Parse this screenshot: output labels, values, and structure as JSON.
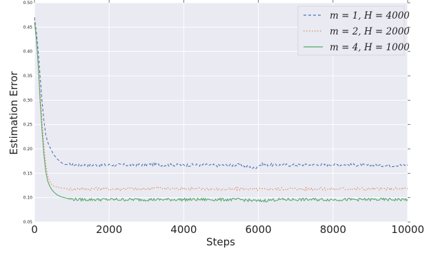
{
  "chart_data": {
    "type": "line",
    "title": "",
    "xlabel": "Steps",
    "ylabel": "Estimation Error",
    "xlim": [
      0,
      10000
    ],
    "ylim": [
      0.05,
      0.5
    ],
    "xticks": [
      "0",
      "2000",
      "4000",
      "6000",
      "8000",
      "10000"
    ],
    "yticks": [
      "0.05",
      "0.10",
      "0.15",
      "0.20",
      "0.25",
      "0.30",
      "0.35",
      "0.40",
      "0.45",
      "0.50"
    ],
    "grid": true,
    "legend_position": "top-right",
    "background": "#eaeaf2",
    "series": [
      {
        "name": "m = 1, H = 4000",
        "color": "#4c72b0",
        "style": "dashed",
        "x": [
          0,
          50,
          100,
          150,
          200,
          250,
          300,
          350,
          400,
          450,
          500,
          600,
          700,
          800,
          900,
          1000,
          1200,
          1500,
          2000,
          2500,
          3000,
          3500,
          4000,
          4500,
          5000,
          5500,
          5900,
          6000,
          6100,
          6500,
          7000,
          7500,
          8000,
          8500,
          9000,
          9500,
          10000
        ],
        "y": [
          0.47,
          0.44,
          0.4,
          0.35,
          0.3,
          0.26,
          0.23,
          0.215,
          0.205,
          0.198,
          0.19,
          0.18,
          0.173,
          0.168,
          0.168,
          0.167,
          0.167,
          0.167,
          0.167,
          0.167,
          0.168,
          0.167,
          0.167,
          0.167,
          0.166,
          0.167,
          0.16,
          0.166,
          0.168,
          0.167,
          0.167,
          0.167,
          0.168,
          0.167,
          0.166,
          0.166,
          0.167
        ]
      },
      {
        "name": "m = 2, H = 2000",
        "color": "#dd8452",
        "style": "dotted",
        "x": [
          0,
          50,
          100,
          150,
          200,
          250,
          300,
          350,
          400,
          450,
          500,
          600,
          700,
          800,
          900,
          1000,
          1200,
          1500,
          2000,
          2500,
          3000,
          3300,
          3500,
          4000,
          4500,
          5000,
          5500,
          6000,
          6500,
          7000,
          7500,
          8000,
          8500,
          9000,
          9500,
          10000
        ],
        "y": [
          0.465,
          0.43,
          0.38,
          0.32,
          0.26,
          0.21,
          0.17,
          0.145,
          0.135,
          0.128,
          0.124,
          0.122,
          0.12,
          0.119,
          0.118,
          0.118,
          0.118,
          0.118,
          0.118,
          0.118,
          0.118,
          0.121,
          0.118,
          0.119,
          0.118,
          0.117,
          0.118,
          0.117,
          0.118,
          0.118,
          0.118,
          0.118,
          0.118,
          0.118,
          0.118,
          0.118
        ]
      },
      {
        "name": "m = 4, H = 1000",
        "color": "#55a868",
        "style": "solid",
        "x": [
          0,
          50,
          100,
          150,
          200,
          250,
          300,
          350,
          400,
          450,
          500,
          600,
          700,
          800,
          900,
          1000,
          1200,
          1500,
          2000,
          2500,
          3000,
          3500,
          4000,
          4500,
          5000,
          5500,
          6000,
          6500,
          7000,
          7500,
          8000,
          8500,
          9000,
          9500,
          10000
        ],
        "y": [
          0.46,
          0.425,
          0.37,
          0.3,
          0.24,
          0.19,
          0.155,
          0.135,
          0.125,
          0.118,
          0.113,
          0.106,
          0.102,
          0.1,
          0.098,
          0.097,
          0.096,
          0.096,
          0.096,
          0.096,
          0.096,
          0.096,
          0.096,
          0.096,
          0.096,
          0.096,
          0.093,
          0.096,
          0.096,
          0.096,
          0.096,
          0.096,
          0.096,
          0.096,
          0.096
        ]
      }
    ]
  }
}
